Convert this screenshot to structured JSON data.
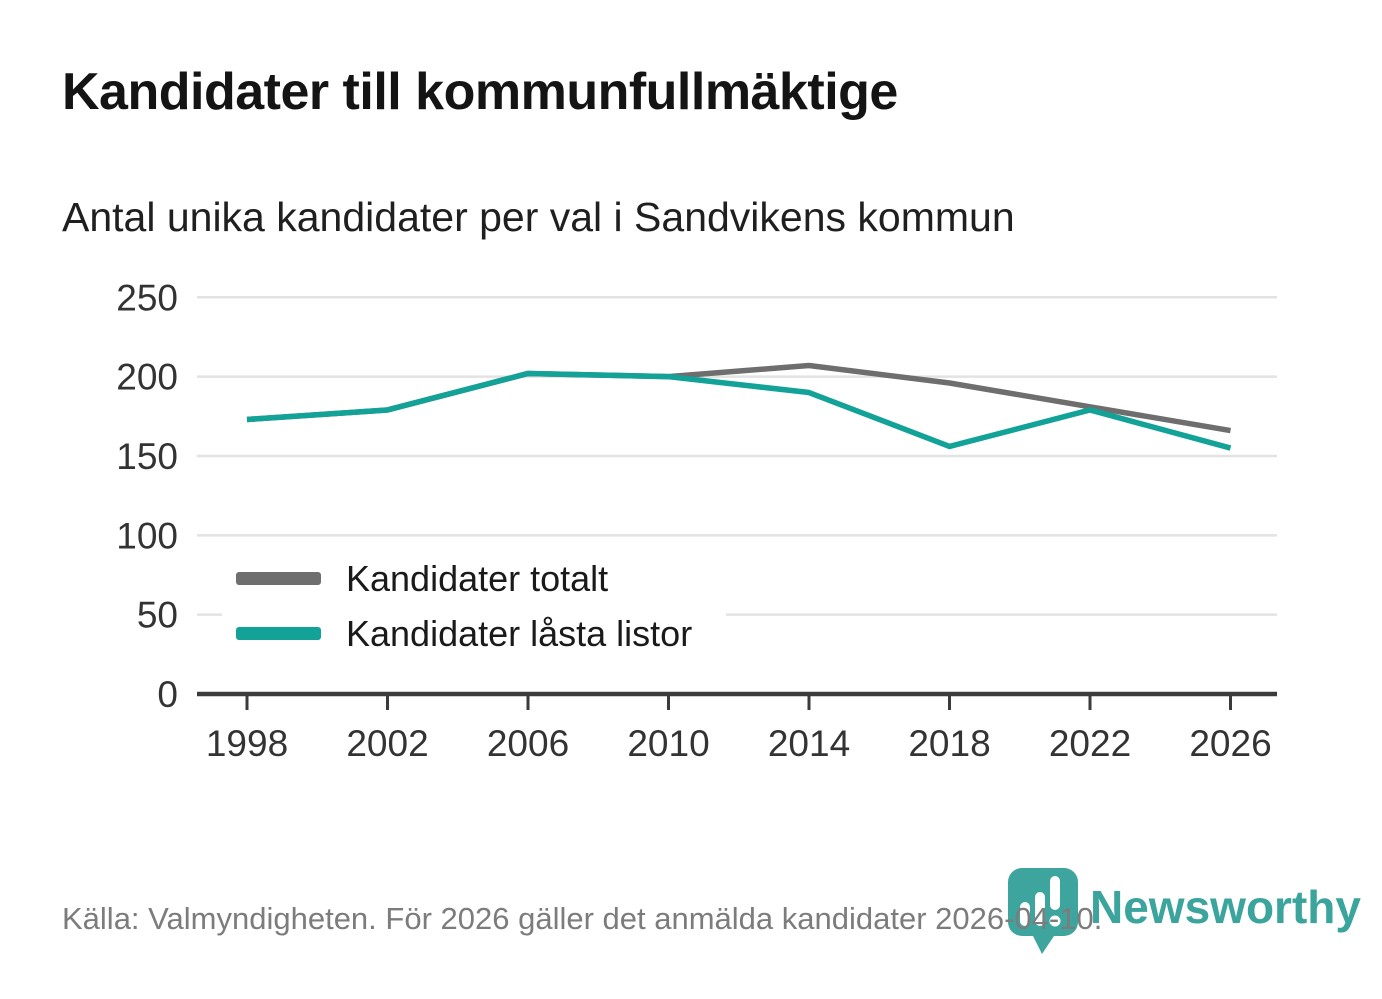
{
  "header": {
    "title": "Kandidater till kommunfullmäktige",
    "subtitle": "Antal unika kandidater per val i Sandvikens kommun"
  },
  "chart_data": {
    "type": "line",
    "title": "Kandidater till kommunfullmäktige",
    "subtitle": "Antal unika kandidater per val i Sandvikens kommun",
    "x": [
      1998,
      2002,
      2006,
      2010,
      2014,
      2018,
      2022,
      2026
    ],
    "series": [
      {
        "name": "Kandidater totalt",
        "color": "#6e6e6e",
        "values": [
          173,
          179,
          202,
          200,
          207,
          196,
          181,
          166
        ]
      },
      {
        "name": "Kandidater låsta listor",
        "color": "#12a297",
        "values": [
          173,
          179,
          202,
          200,
          190,
          156,
          179,
          155
        ]
      }
    ],
    "xlabel": "",
    "ylabel": "",
    "ylim": [
      0,
      250
    ],
    "yticks": [
      0,
      50,
      100,
      150,
      200,
      250
    ],
    "grid": true,
    "legend_position": "inside-bottom-left"
  },
  "footer": {
    "source": "Källa: Valmyndigheten. För 2026 gäller det anmälda kandidater 2026-04-10.",
    "brand": "Newsworthy"
  },
  "colors": {
    "background": "#ffffff",
    "title_text": "#141414",
    "subtitle_text": "#1f1f1f",
    "axis_text": "#333333",
    "grid_line": "#e3e3e3",
    "axis_line": "#3b3b3b",
    "series_total": "#6e6e6e",
    "series_locked": "#12a297",
    "footer_text": "#7c7c7c",
    "brand_teal": "#3aa49d",
    "logo_pin": "#3da59e"
  }
}
